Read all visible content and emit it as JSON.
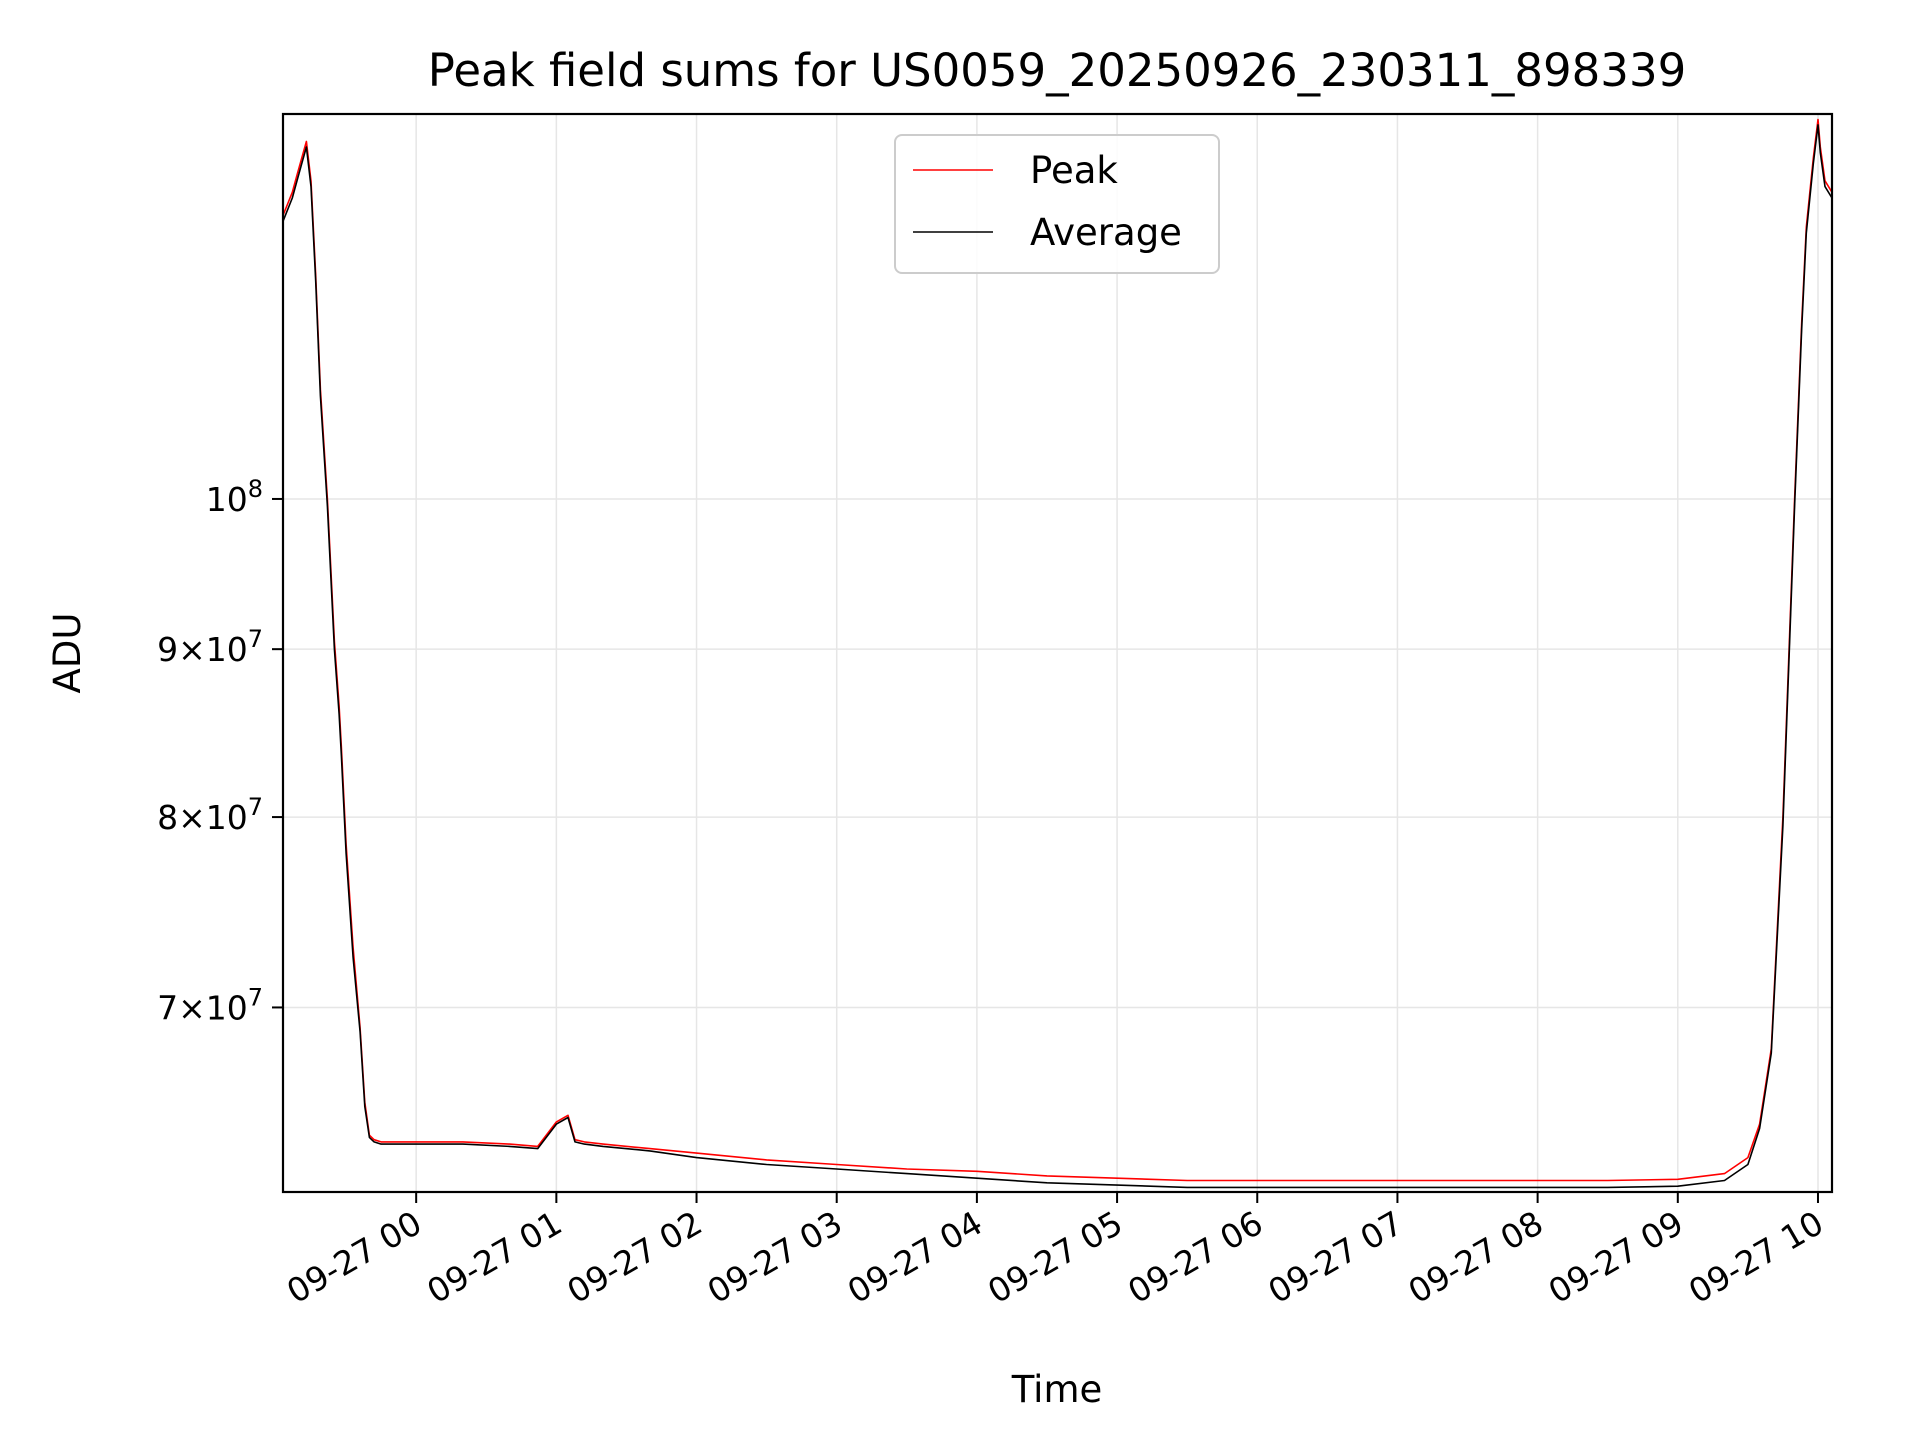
{
  "chart_data": {
    "type": "line",
    "title": "Peak field sums for US0059_20250926_230311_898339",
    "xlabel": "Time",
    "ylabel": "ADU",
    "xlim": [
      "2025-09-26 23:03",
      "2025-09-27 10:06"
    ],
    "ylim": [
      61500000,
      131000000
    ],
    "yscale": "log",
    "grid": true,
    "legend_position": "upper center",
    "x_ticks": [
      "09-27 00",
      "09-27 01",
      "09-27 02",
      "09-27 03",
      "09-27 04",
      "09-27 05",
      "09-27 06",
      "09-27 07",
      "09-27 08",
      "09-27 09",
      "09-27 10"
    ],
    "y_ticks": [
      {
        "value": 70000000,
        "mantissa": "7",
        "exponent": "7"
      },
      {
        "value": 80000000,
        "mantissa": "8",
        "exponent": "7"
      },
      {
        "value": 90000000,
        "mantissa": "9",
        "exponent": "7"
      },
      {
        "value": 100000000,
        "mantissa": "",
        "exponent": "8"
      }
    ],
    "series": [
      {
        "name": "Peak",
        "color": "#ff0000",
        "x": [
          "2025-09-26 23:03",
          "2025-09-26 23:07",
          "2025-09-26 23:09",
          "2025-09-26 23:11",
          "2025-09-26 23:13",
          "2025-09-26 23:15",
          "2025-09-26 23:17",
          "2025-09-26 23:19",
          "2025-09-26 23:22",
          "2025-09-26 23:25",
          "2025-09-26 23:27",
          "2025-09-26 23:28",
          "2025-09-26 23:30",
          "2025-09-26 23:33",
          "2025-09-26 23:36",
          "2025-09-26 23:38",
          "2025-09-26 23:40",
          "2025-09-26 23:42",
          "2025-09-26 23:45",
          "2025-09-26 23:50",
          "2025-09-27 00:00",
          "2025-09-27 00:20",
          "2025-09-27 00:40",
          "2025-09-27 00:52",
          "2025-09-27 01:00",
          "2025-09-27 01:05",
          "2025-09-27 01:08",
          "2025-09-27 01:12",
          "2025-09-27 01:20",
          "2025-09-27 01:40",
          "2025-09-27 02:00",
          "2025-09-27 02:30",
          "2025-09-27 03:00",
          "2025-09-27 03:30",
          "2025-09-27 04:00",
          "2025-09-27 04:30",
          "2025-09-27 05:00",
          "2025-09-27 05:30",
          "2025-09-27 06:00",
          "2025-09-27 06:30",
          "2025-09-27 07:00",
          "2025-09-27 07:30",
          "2025-09-27 08:00",
          "2025-09-27 08:30",
          "2025-09-27 09:00",
          "2025-09-27 09:20",
          "2025-09-27 09:30",
          "2025-09-27 09:35",
          "2025-09-27 09:40",
          "2025-09-27 09:45",
          "2025-09-27 09:50",
          "2025-09-27 09:53",
          "2025-09-27 09:55",
          "2025-09-27 09:58",
          "2025-09-27 10:00",
          "2025-09-27 10:01",
          "2025-09-27 10:03",
          "2025-09-27 10:06"
        ],
        "values": [
          122000000,
          124000000,
          125500000,
          127000000,
          128500000,
          125000000,
          117000000,
          108000000,
          100000000,
          90500000,
          86500000,
          84000000,
          78500000,
          73000000,
          69000000,
          65500000,
          64000000,
          63800000,
          63700000,
          63700000,
          63700000,
          63700000,
          63600000,
          63500000,
          64600000,
          64900000,
          63800000,
          63700000,
          63600000,
          63400000,
          63200000,
          62900000,
          62700000,
          62500000,
          62400000,
          62200000,
          62100000,
          62000000,
          62000000,
          62000000,
          62000000,
          62000000,
          62000000,
          62000000,
          62050000,
          62300000,
          63000000,
          64500000,
          68000000,
          80000000,
          100000000,
          113000000,
          121000000,
          127000000,
          130500000,
          128000000,
          125000000,
          124000000
        ]
      },
      {
        "name": "Average",
        "color": "#000000",
        "x": [
          "2025-09-26 23:03",
          "2025-09-26 23:07",
          "2025-09-26 23:09",
          "2025-09-26 23:11",
          "2025-09-26 23:13",
          "2025-09-26 23:15",
          "2025-09-26 23:17",
          "2025-09-26 23:19",
          "2025-09-26 23:22",
          "2025-09-26 23:25",
          "2025-09-26 23:27",
          "2025-09-26 23:28",
          "2025-09-26 23:30",
          "2025-09-26 23:33",
          "2025-09-26 23:36",
          "2025-09-26 23:38",
          "2025-09-26 23:40",
          "2025-09-26 23:42",
          "2025-09-26 23:45",
          "2025-09-26 23:50",
          "2025-09-27 00:00",
          "2025-09-27 00:20",
          "2025-09-27 00:40",
          "2025-09-27 00:52",
          "2025-09-27 01:00",
          "2025-09-27 01:05",
          "2025-09-27 01:08",
          "2025-09-27 01:12",
          "2025-09-27 01:20",
          "2025-09-27 01:40",
          "2025-09-27 02:00",
          "2025-09-27 02:30",
          "2025-09-27 03:00",
          "2025-09-27 03:30",
          "2025-09-27 04:00",
          "2025-09-27 04:30",
          "2025-09-27 05:00",
          "2025-09-27 05:30",
          "2025-09-27 06:00",
          "2025-09-27 06:30",
          "2025-09-27 07:00",
          "2025-09-27 07:30",
          "2025-09-27 08:00",
          "2025-09-27 08:30",
          "2025-09-27 09:00",
          "2025-09-27 09:20",
          "2025-09-27 09:30",
          "2025-09-27 09:35",
          "2025-09-27 09:40",
          "2025-09-27 09:45",
          "2025-09-27 09:50",
          "2025-09-27 09:53",
          "2025-09-27 09:55",
          "2025-09-27 09:58",
          "2025-09-27 10:00",
          "2025-09-27 10:01",
          "2025-09-27 10:03",
          "2025-09-27 10:06"
        ],
        "values": [
          121500000,
          123500000,
          125000000,
          126500000,
          128000000,
          124500000,
          116500000,
          107500000,
          99500000,
          90000000,
          86000000,
          83500000,
          78000000,
          72500000,
          68800000,
          65300000,
          63900000,
          63700000,
          63600000,
          63600000,
          63600000,
          63600000,
          63500000,
          63400000,
          64500000,
          64800000,
          63700000,
          63600000,
          63500000,
          63300000,
          63000000,
          62700000,
          62500000,
          62300000,
          62100000,
          61900000,
          61800000,
          61700000,
          61700000,
          61700000,
          61700000,
          61700000,
          61700000,
          61700000,
          61750000,
          62000000,
          62700000,
          64300000,
          67800000,
          79500000,
          99500000,
          112500000,
          120500000,
          126500000,
          130000000,
          127500000,
          124500000,
          123500000
        ]
      }
    ]
  }
}
